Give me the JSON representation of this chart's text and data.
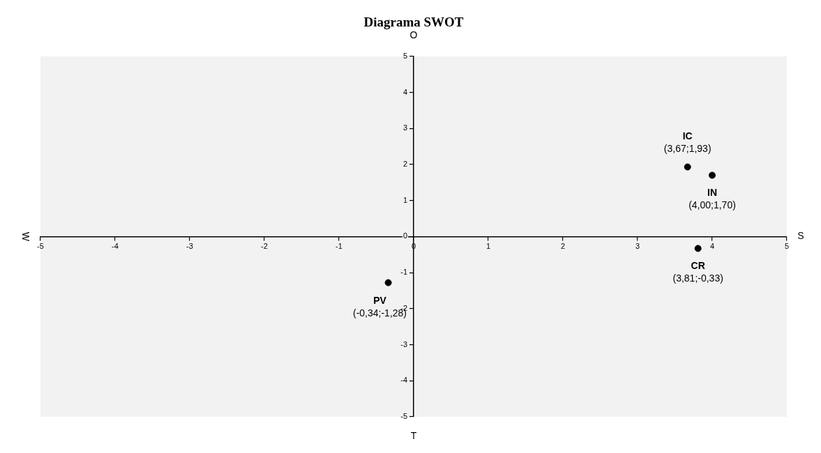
{
  "chart_data": {
    "type": "scatter",
    "title": "Diagrama SWOT",
    "xlim": [
      -5,
      5
    ],
    "xticks": [
      -5,
      -4,
      -3,
      -2,
      -1,
      0,
      1,
      2,
      3,
      4,
      5
    ],
    "ylim": [
      -5,
      5
    ],
    "yticks": [
      -5,
      -4,
      -3,
      -2,
      -1,
      0,
      1,
      2,
      3,
      4,
      5
    ],
    "grid": false,
    "legend": false,
    "marker": "circle",
    "series": [
      {
        "name": "IC",
        "color": "#000000",
        "x": [
          3.67
        ],
        "values": [
          1.93
        ],
        "value_labels": [
          "(3,67;1,93)"
        ]
      },
      {
        "name": "IN",
        "color": "#000000",
        "x": [
          4.0
        ],
        "values": [
          1.7
        ],
        "value_labels": [
          "(4,00;1,70)"
        ]
      },
      {
        "name": "CR",
        "color": "#000000",
        "x": [
          3.81
        ],
        "values": [
          -0.33
        ],
        "value_labels": [
          "(3,81;-0,33)"
        ]
      },
      {
        "name": "PV",
        "color": "#000000",
        "x": [
          -0.34
        ],
        "values": [
          -1.28
        ],
        "value_labels": [
          "(-0,34;-1,28)"
        ]
      }
    ],
    "annotations": [
      "W",
      "S",
      "O",
      "T"
    ]
  }
}
